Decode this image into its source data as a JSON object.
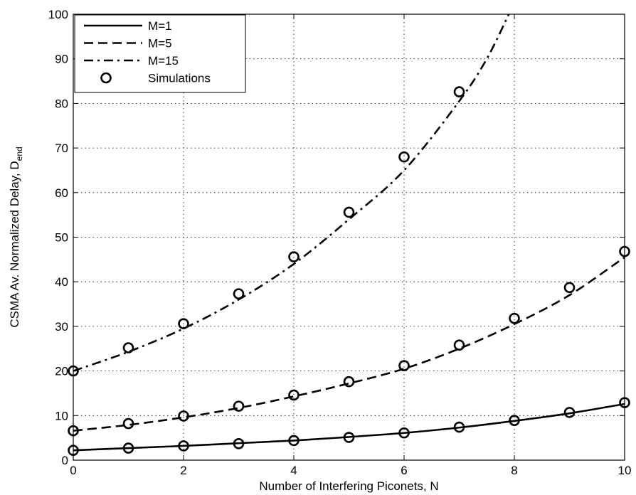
{
  "chart_data": {
    "type": "line",
    "xlabel": "Number of Interfering Piconets, N",
    "ylabel": "CSMA Av. Normalized Delay, D",
    "ylabel_subscript": "end",
    "xlim": [
      0,
      10
    ],
    "ylim": [
      0,
      100
    ],
    "xticks": [
      0,
      2,
      4,
      6,
      8,
      10
    ],
    "yticks": [
      0,
      10,
      20,
      30,
      40,
      50,
      60,
      70,
      80,
      90,
      100
    ],
    "grid": true,
    "legend_position": "top-left",
    "series": [
      {
        "name": "M=1",
        "style": "solid",
        "x": [
          0,
          1,
          2,
          3,
          4,
          5,
          6,
          7,
          8,
          9,
          10
        ],
        "values": [
          2.2,
          2.7,
          3.2,
          3.8,
          4.4,
          5.2,
          6.1,
          7.3,
          8.8,
          10.5,
          12.6
        ]
      },
      {
        "name": "M=5",
        "style": "dashed",
        "x": [
          0,
          1,
          2,
          3,
          4,
          5,
          6,
          7,
          8,
          9,
          10
        ],
        "values": [
          6.6,
          7.9,
          9.6,
          11.7,
          14.3,
          17.2,
          20.5,
          25.0,
          30.5,
          37.0,
          45.5
        ]
      },
      {
        "name": "M=15",
        "style": "dash-dot",
        "x": [
          0,
          1,
          2,
          3,
          4,
          5,
          6,
          7,
          7.5,
          7.9
        ],
        "values": [
          20.0,
          24.3,
          29.5,
          36.0,
          44.0,
          54.0,
          65.0,
          80.5,
          90.0,
          100.0
        ]
      },
      {
        "name": "Simulations",
        "style": "markers",
        "groups": [
          {
            "x": [
              0,
              1,
              2,
              3,
              4,
              5,
              6,
              7,
              8,
              9,
              10
            ],
            "values": [
              2.2,
              2.7,
              3.2,
              3.7,
              4.4,
              5.1,
              6.1,
              7.4,
              8.9,
              10.7,
              12.9
            ]
          },
          {
            "x": [
              0,
              1,
              2,
              3,
              4,
              5,
              6,
              7,
              8,
              9,
              10
            ],
            "values": [
              6.6,
              8.2,
              9.9,
              12.1,
              14.6,
              17.6,
              21.2,
              25.8,
              31.8,
              38.7,
              46.8
            ]
          },
          {
            "x": [
              0,
              1,
              2,
              3,
              4,
              5,
              6,
              7
            ],
            "values": [
              20.0,
              25.2,
              30.6,
              37.3,
              45.6,
              55.6,
              68.0,
              82.6
            ]
          }
        ]
      }
    ]
  }
}
